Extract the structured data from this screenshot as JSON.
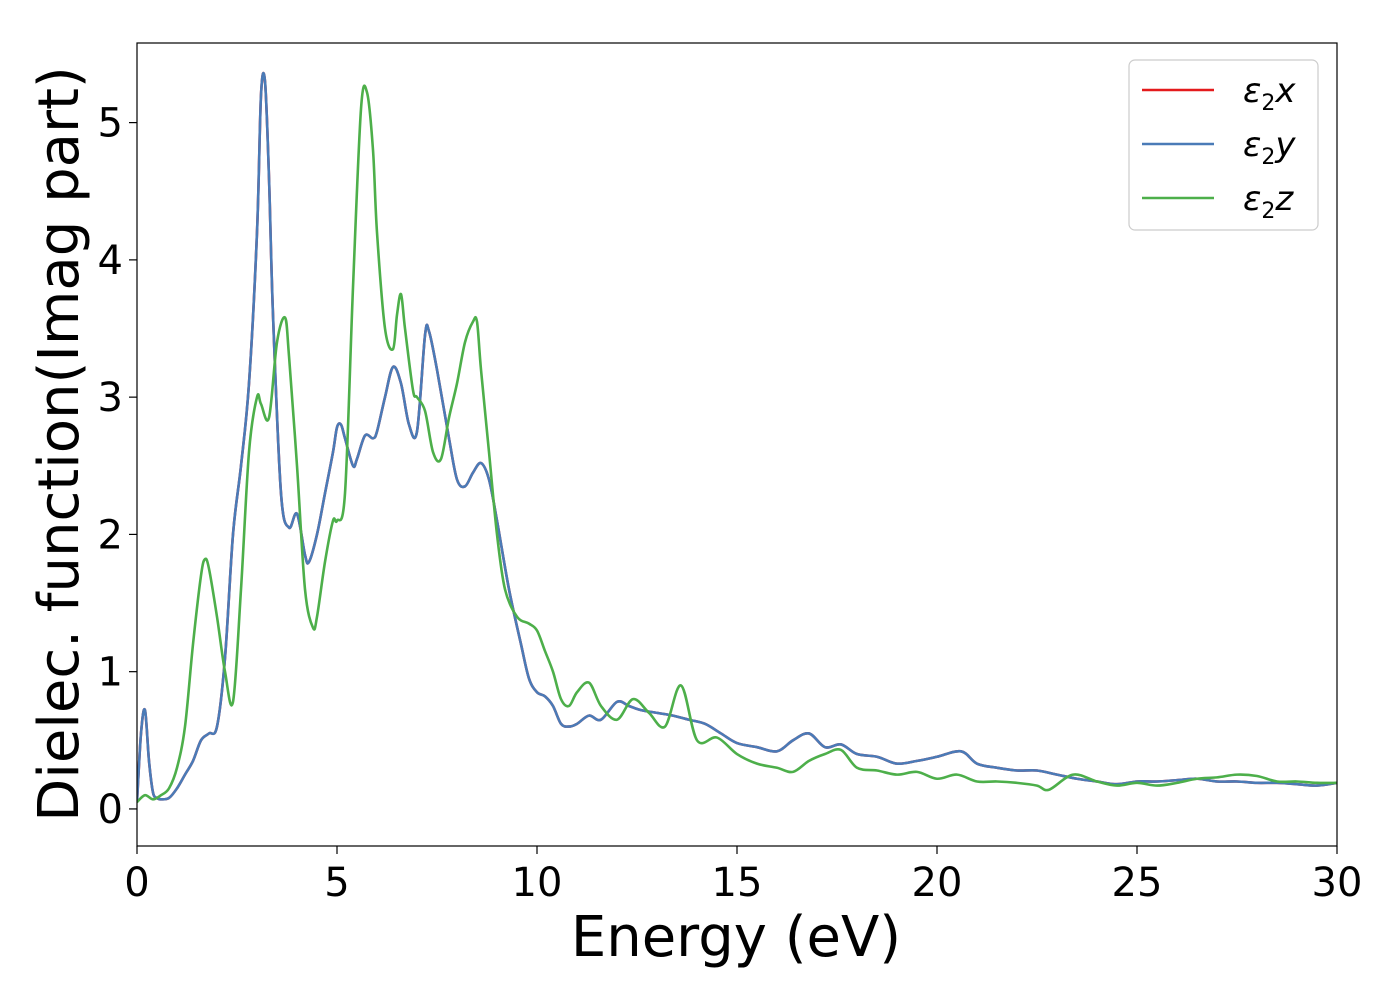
{
  "chart_data": {
    "type": "line",
    "xlabel": "Energy (eV)",
    "ylabel": "Dielec. function(Imag part)",
    "xlim": [
      0,
      30
    ],
    "ylim": [
      -0.27,
      5.58
    ],
    "x_ticks": [
      0,
      5,
      10,
      15,
      20,
      25,
      30
    ],
    "y_ticks": [
      0,
      1,
      2,
      3,
      4,
      5
    ],
    "grid": false,
    "legend_position": "top-right",
    "series": [
      {
        "name": "ε2x",
        "legend_base": "ε",
        "legend_sub": "2",
        "legend_axis": "x",
        "color": "#e41a1c",
        "x": [
          0,
          0.1,
          0.2,
          0.3,
          0.4,
          0.5,
          0.6,
          0.8,
          1.0,
          1.2,
          1.4,
          1.6,
          1.8,
          2.0,
          2.2,
          2.4,
          2.6,
          2.8,
          3.0,
          3.1,
          3.2,
          3.3,
          3.4,
          3.6,
          3.8,
          4.0,
          4.2,
          4.3,
          4.5,
          4.7,
          4.9,
          5.0,
          5.1,
          5.2,
          5.4,
          5.5,
          5.7,
          5.9,
          6.0,
          6.2,
          6.4,
          6.6,
          6.8,
          7.0,
          7.2,
          7.3,
          7.5,
          7.8,
          8.0,
          8.2,
          8.4,
          8.6,
          8.8,
          9.0,
          9.3,
          9.6,
          9.8,
          10.0,
          10.2,
          10.4,
          10.6,
          10.8,
          11.0,
          11.3,
          11.6,
          12.0,
          12.3,
          12.6,
          13.0,
          13.4,
          13.8,
          14.2,
          14.6,
          15.0,
          15.5,
          16.0,
          16.4,
          16.8,
          17.2,
          17.6,
          18.0,
          18.5,
          19.0,
          19.5,
          20.0,
          20.6,
          21.0,
          21.5,
          22.0,
          22.5,
          23.0,
          23.5,
          24.0,
          24.5,
          25.0,
          25.5,
          26.0,
          26.5,
          27.0,
          27.5,
          28.0,
          28.5,
          29.0,
          29.5,
          30.0
        ],
        "y": [
          0.05,
          0.55,
          0.72,
          0.35,
          0.12,
          0.08,
          0.07,
          0.08,
          0.15,
          0.25,
          0.35,
          0.5,
          0.55,
          0.6,
          1.1,
          2.0,
          2.5,
          3.1,
          4.2,
          5.2,
          5.3,
          4.6,
          3.6,
          2.3,
          2.05,
          2.15,
          1.85,
          1.8,
          2.0,
          2.3,
          2.6,
          2.78,
          2.8,
          2.7,
          2.5,
          2.55,
          2.72,
          2.7,
          2.75,
          3.0,
          3.22,
          3.1,
          2.8,
          2.75,
          3.45,
          3.48,
          3.2,
          2.7,
          2.4,
          2.35,
          2.45,
          2.52,
          2.4,
          2.1,
          1.6,
          1.2,
          0.95,
          0.85,
          0.82,
          0.75,
          0.62,
          0.6,
          0.62,
          0.68,
          0.65,
          0.78,
          0.75,
          0.72,
          0.7,
          0.68,
          0.65,
          0.62,
          0.55,
          0.48,
          0.45,
          0.42,
          0.5,
          0.55,
          0.45,
          0.47,
          0.4,
          0.38,
          0.33,
          0.35,
          0.38,
          0.42,
          0.33,
          0.3,
          0.28,
          0.28,
          0.25,
          0.22,
          0.2,
          0.18,
          0.2,
          0.2,
          0.21,
          0.22,
          0.2,
          0.2,
          0.19,
          0.19,
          0.18,
          0.17,
          0.19
        ]
      },
      {
        "name": "ε2y",
        "legend_base": "ε",
        "legend_sub": "2",
        "legend_axis": "y",
        "color": "#4a7bb7",
        "x": [
          0,
          0.1,
          0.2,
          0.3,
          0.4,
          0.5,
          0.6,
          0.8,
          1.0,
          1.2,
          1.4,
          1.6,
          1.8,
          2.0,
          2.2,
          2.4,
          2.6,
          2.8,
          3.0,
          3.1,
          3.2,
          3.3,
          3.4,
          3.6,
          3.8,
          4.0,
          4.2,
          4.3,
          4.5,
          4.7,
          4.9,
          5.0,
          5.1,
          5.2,
          5.4,
          5.5,
          5.7,
          5.9,
          6.0,
          6.2,
          6.4,
          6.6,
          6.8,
          7.0,
          7.2,
          7.3,
          7.5,
          7.8,
          8.0,
          8.2,
          8.4,
          8.6,
          8.8,
          9.0,
          9.3,
          9.6,
          9.8,
          10.0,
          10.2,
          10.4,
          10.6,
          10.8,
          11.0,
          11.3,
          11.6,
          12.0,
          12.3,
          12.6,
          13.0,
          13.4,
          13.8,
          14.2,
          14.6,
          15.0,
          15.5,
          16.0,
          16.4,
          16.8,
          17.2,
          17.6,
          18.0,
          18.5,
          19.0,
          19.5,
          20.0,
          20.6,
          21.0,
          21.5,
          22.0,
          22.5,
          23.0,
          23.5,
          24.0,
          24.5,
          25.0,
          25.5,
          26.0,
          26.5,
          27.0,
          27.5,
          28.0,
          28.5,
          29.0,
          29.5,
          30.0
        ],
        "y": [
          0.05,
          0.55,
          0.72,
          0.35,
          0.12,
          0.08,
          0.07,
          0.08,
          0.15,
          0.25,
          0.35,
          0.5,
          0.55,
          0.6,
          1.1,
          2.0,
          2.5,
          3.1,
          4.2,
          5.2,
          5.3,
          4.6,
          3.6,
          2.3,
          2.05,
          2.15,
          1.85,
          1.8,
          2.0,
          2.3,
          2.6,
          2.78,
          2.8,
          2.7,
          2.5,
          2.55,
          2.72,
          2.7,
          2.75,
          3.0,
          3.22,
          3.1,
          2.8,
          2.75,
          3.45,
          3.48,
          3.2,
          2.7,
          2.4,
          2.35,
          2.45,
          2.52,
          2.4,
          2.1,
          1.6,
          1.2,
          0.95,
          0.85,
          0.82,
          0.75,
          0.62,
          0.6,
          0.62,
          0.68,
          0.65,
          0.78,
          0.75,
          0.72,
          0.7,
          0.68,
          0.65,
          0.62,
          0.55,
          0.48,
          0.45,
          0.42,
          0.5,
          0.55,
          0.45,
          0.47,
          0.4,
          0.38,
          0.33,
          0.35,
          0.38,
          0.42,
          0.33,
          0.3,
          0.28,
          0.28,
          0.25,
          0.22,
          0.2,
          0.18,
          0.2,
          0.2,
          0.21,
          0.22,
          0.2,
          0.2,
          0.19,
          0.19,
          0.18,
          0.17,
          0.19
        ]
      },
      {
        "name": "ε2z",
        "legend_base": "ε",
        "legend_sub": "2",
        "legend_axis": "z",
        "color": "#4daf4a",
        "x": [
          0,
          0.2,
          0.4,
          0.6,
          0.8,
          1.0,
          1.2,
          1.4,
          1.6,
          1.7,
          1.8,
          2.0,
          2.2,
          2.4,
          2.6,
          2.8,
          3.0,
          3.1,
          3.3,
          3.5,
          3.7,
          3.8,
          4.0,
          4.2,
          4.4,
          4.5,
          4.7,
          4.9,
          5.0,
          5.2,
          5.4,
          5.6,
          5.75,
          5.9,
          6.0,
          6.2,
          6.4,
          6.5,
          6.6,
          6.7,
          6.9,
          7.0,
          7.2,
          7.4,
          7.6,
          7.8,
          8.0,
          8.2,
          8.4,
          8.5,
          8.6,
          8.8,
          9.0,
          9.2,
          9.5,
          9.8,
          10.0,
          10.2,
          10.4,
          10.6,
          10.8,
          11.0,
          11.3,
          11.6,
          12.0,
          12.4,
          12.8,
          13.2,
          13.6,
          14.0,
          14.5,
          15.0,
          15.5,
          16.0,
          16.4,
          16.8,
          17.2,
          17.6,
          18.0,
          18.5,
          19.0,
          19.5,
          20.0,
          20.5,
          21.0,
          21.5,
          22.0,
          22.5,
          22.8,
          23.4,
          24.0,
          24.5,
          25.0,
          25.5,
          26.0,
          26.5,
          27.0,
          27.5,
          28.0,
          28.5,
          29.0,
          29.5,
          30.0
        ],
        "y": [
          0.05,
          0.1,
          0.07,
          0.1,
          0.15,
          0.3,
          0.6,
          1.2,
          1.7,
          1.82,
          1.75,
          1.4,
          1.0,
          0.78,
          1.6,
          2.6,
          3.0,
          2.95,
          2.85,
          3.4,
          3.58,
          3.3,
          2.5,
          1.6,
          1.32,
          1.4,
          1.8,
          2.1,
          2.1,
          2.3,
          3.8,
          5.1,
          5.22,
          4.8,
          4.2,
          3.5,
          3.35,
          3.6,
          3.75,
          3.5,
          3.05,
          3.0,
          2.9,
          2.6,
          2.55,
          2.85,
          3.1,
          3.4,
          3.55,
          3.55,
          3.2,
          2.6,
          2.0,
          1.6,
          1.4,
          1.35,
          1.3,
          1.15,
          1.0,
          0.8,
          0.75,
          0.85,
          0.92,
          0.75,
          0.65,
          0.8,
          0.7,
          0.6,
          0.9,
          0.5,
          0.52,
          0.4,
          0.33,
          0.3,
          0.27,
          0.35,
          0.4,
          0.43,
          0.3,
          0.28,
          0.25,
          0.27,
          0.22,
          0.25,
          0.2,
          0.2,
          0.19,
          0.17,
          0.14,
          0.25,
          0.2,
          0.17,
          0.19,
          0.17,
          0.19,
          0.22,
          0.23,
          0.25,
          0.24,
          0.2,
          0.2,
          0.19,
          0.19
        ]
      }
    ]
  }
}
